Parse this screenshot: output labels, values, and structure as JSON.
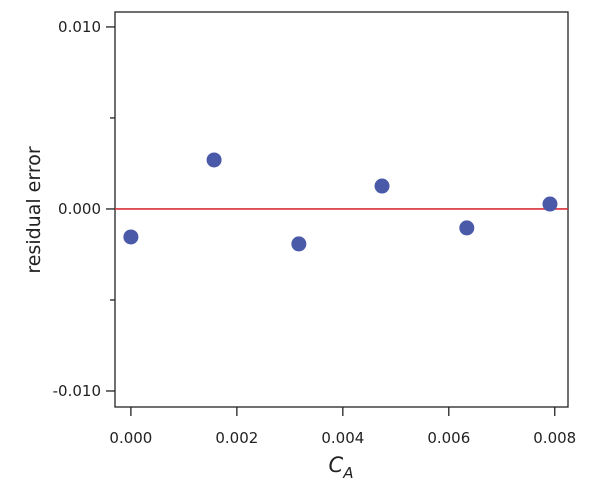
{
  "chart_data": {
    "type": "scatter",
    "x_label": "C",
    "x_label_sub": "A",
    "y_label": "residual error",
    "series": [
      {
        "color": "#4a5aa8",
        "x": [
          0.0,
          0.00157,
          0.00317,
          0.00474,
          0.00634,
          0.00791
        ],
        "values": [
          -0.00154,
          0.00269,
          -0.00192,
          0.00126,
          -0.00104,
          0.00027
        ]
      }
    ],
    "xlim": [
      -0.0003,
      0.00825
    ],
    "ylim": [
      -0.01088,
      0.01082
    ],
    "xticks": [
      {
        "value": 0,
        "label": "0.000"
      },
      {
        "value": 0.002,
        "label": "0.002"
      },
      {
        "value": 0.004,
        "label": "0.004"
      },
      {
        "value": 0.006,
        "label": "0.006"
      },
      {
        "value": 0.008,
        "label": "0.008"
      }
    ],
    "yticks": [
      {
        "value": 0.01,
        "label": "0.010"
      },
      {
        "value": 0,
        "label": "0.000"
      },
      {
        "value": -0.01,
        "label": "-0.010"
      }
    ],
    "yminorticks": [
      0.005,
      -0.005
    ],
    "hline": 0,
    "hline_color": "#d9303a"
  }
}
